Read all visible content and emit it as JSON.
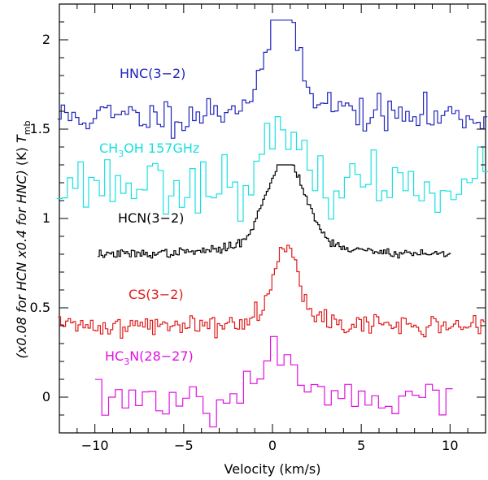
{
  "chart_data": {
    "type": "line",
    "drawstyle": "steps",
    "title": "",
    "xlabel": "Velocity (km/s)",
    "ylabel": {
      "main": "T",
      "sub": "mb",
      "unit": "(K)",
      "note": "(x0.08 for HCN  x0.4 for HNC)"
    },
    "xlim": [
      -12,
      12
    ],
    "ylim": [
      -0.2,
      2.2
    ],
    "x_ticks": [
      -10,
      -5,
      0,
      5,
      10
    ],
    "x_tick_labels": [
      "−10",
      "−5",
      "0",
      "5",
      "10"
    ],
    "y_ticks": [
      0,
      0.5,
      1,
      1.5,
      2
    ],
    "y_tick_labels": [
      "0",
      "0.5",
      "1",
      "1.5",
      "2"
    ],
    "grid": false,
    "colors": {
      "hnc": "#1f24b8",
      "ch3oh": "#19e0e0",
      "hcn": "#000000",
      "cs": "#e01b1b",
      "hc3n": "#e010e0"
    },
    "labels": {
      "hnc": "HNC(3−2)",
      "ch3oh_pre": "CH",
      "ch3oh_sub": "3",
      "ch3oh_post": "OH  157GHz",
      "hcn": "HCN(3−2)",
      "cs": "CS(3−2)",
      "hc3n_pre": "HC",
      "hc3n_sub": "3",
      "hc3n_post": "N(28−27)"
    },
    "series": [
      {
        "key": "hnc",
        "name": "HNC(3-2)",
        "x_range": [
          -12,
          12
        ],
        "step": 0.2,
        "baseline": 1.57,
        "noise": 0.05,
        "peak": {
          "x0": 0.6,
          "sigma": 0.85,
          "amp": 0.5,
          "wing": 0.1
        },
        "max": 2.11,
        "seed": 11
      },
      {
        "key": "ch3oh",
        "name": "CH3OH 157GHz",
        "x_range": [
          -12,
          12
        ],
        "step": 0.3,
        "baseline": 1.2,
        "noise": 0.08,
        "peak": {
          "x0": 0.5,
          "sigma": 0.7,
          "amp": 0.3,
          "wing": 0
        },
        "max": 1.57,
        "seed": 23
      },
      {
        "key": "hcn",
        "name": "HCN(3-2)",
        "x_range": [
          -9.8,
          10
        ],
        "step": 0.1,
        "baseline": 0.8,
        "noise": 0.012,
        "peak": {
          "x0": 0.75,
          "sigma": 1.1,
          "amp": 0.48,
          "wing": 0.05
        },
        "max": 1.3,
        "seed": 37
      },
      {
        "key": "cs",
        "name": "CS(3-2)",
        "x_range": [
          -12,
          12
        ],
        "step": 0.14,
        "baseline": 0.4,
        "noise": 0.03,
        "peak": {
          "x0": 0.75,
          "sigma": 0.7,
          "amp": 0.42,
          "wing": 0.05
        },
        "max": 0.85,
        "seed": 41
      },
      {
        "key": "hc3n",
        "name": "HC3N(28-27)",
        "x_range": [
          -9.8,
          10
        ],
        "step": 0.38,
        "baseline": 0.0,
        "noise": 0.07,
        "peak": {
          "x0": 0.5,
          "sigma": 0.9,
          "amp": 0.32,
          "wing": 0
        },
        "max": 0.43,
        "seed": 53
      }
    ]
  }
}
